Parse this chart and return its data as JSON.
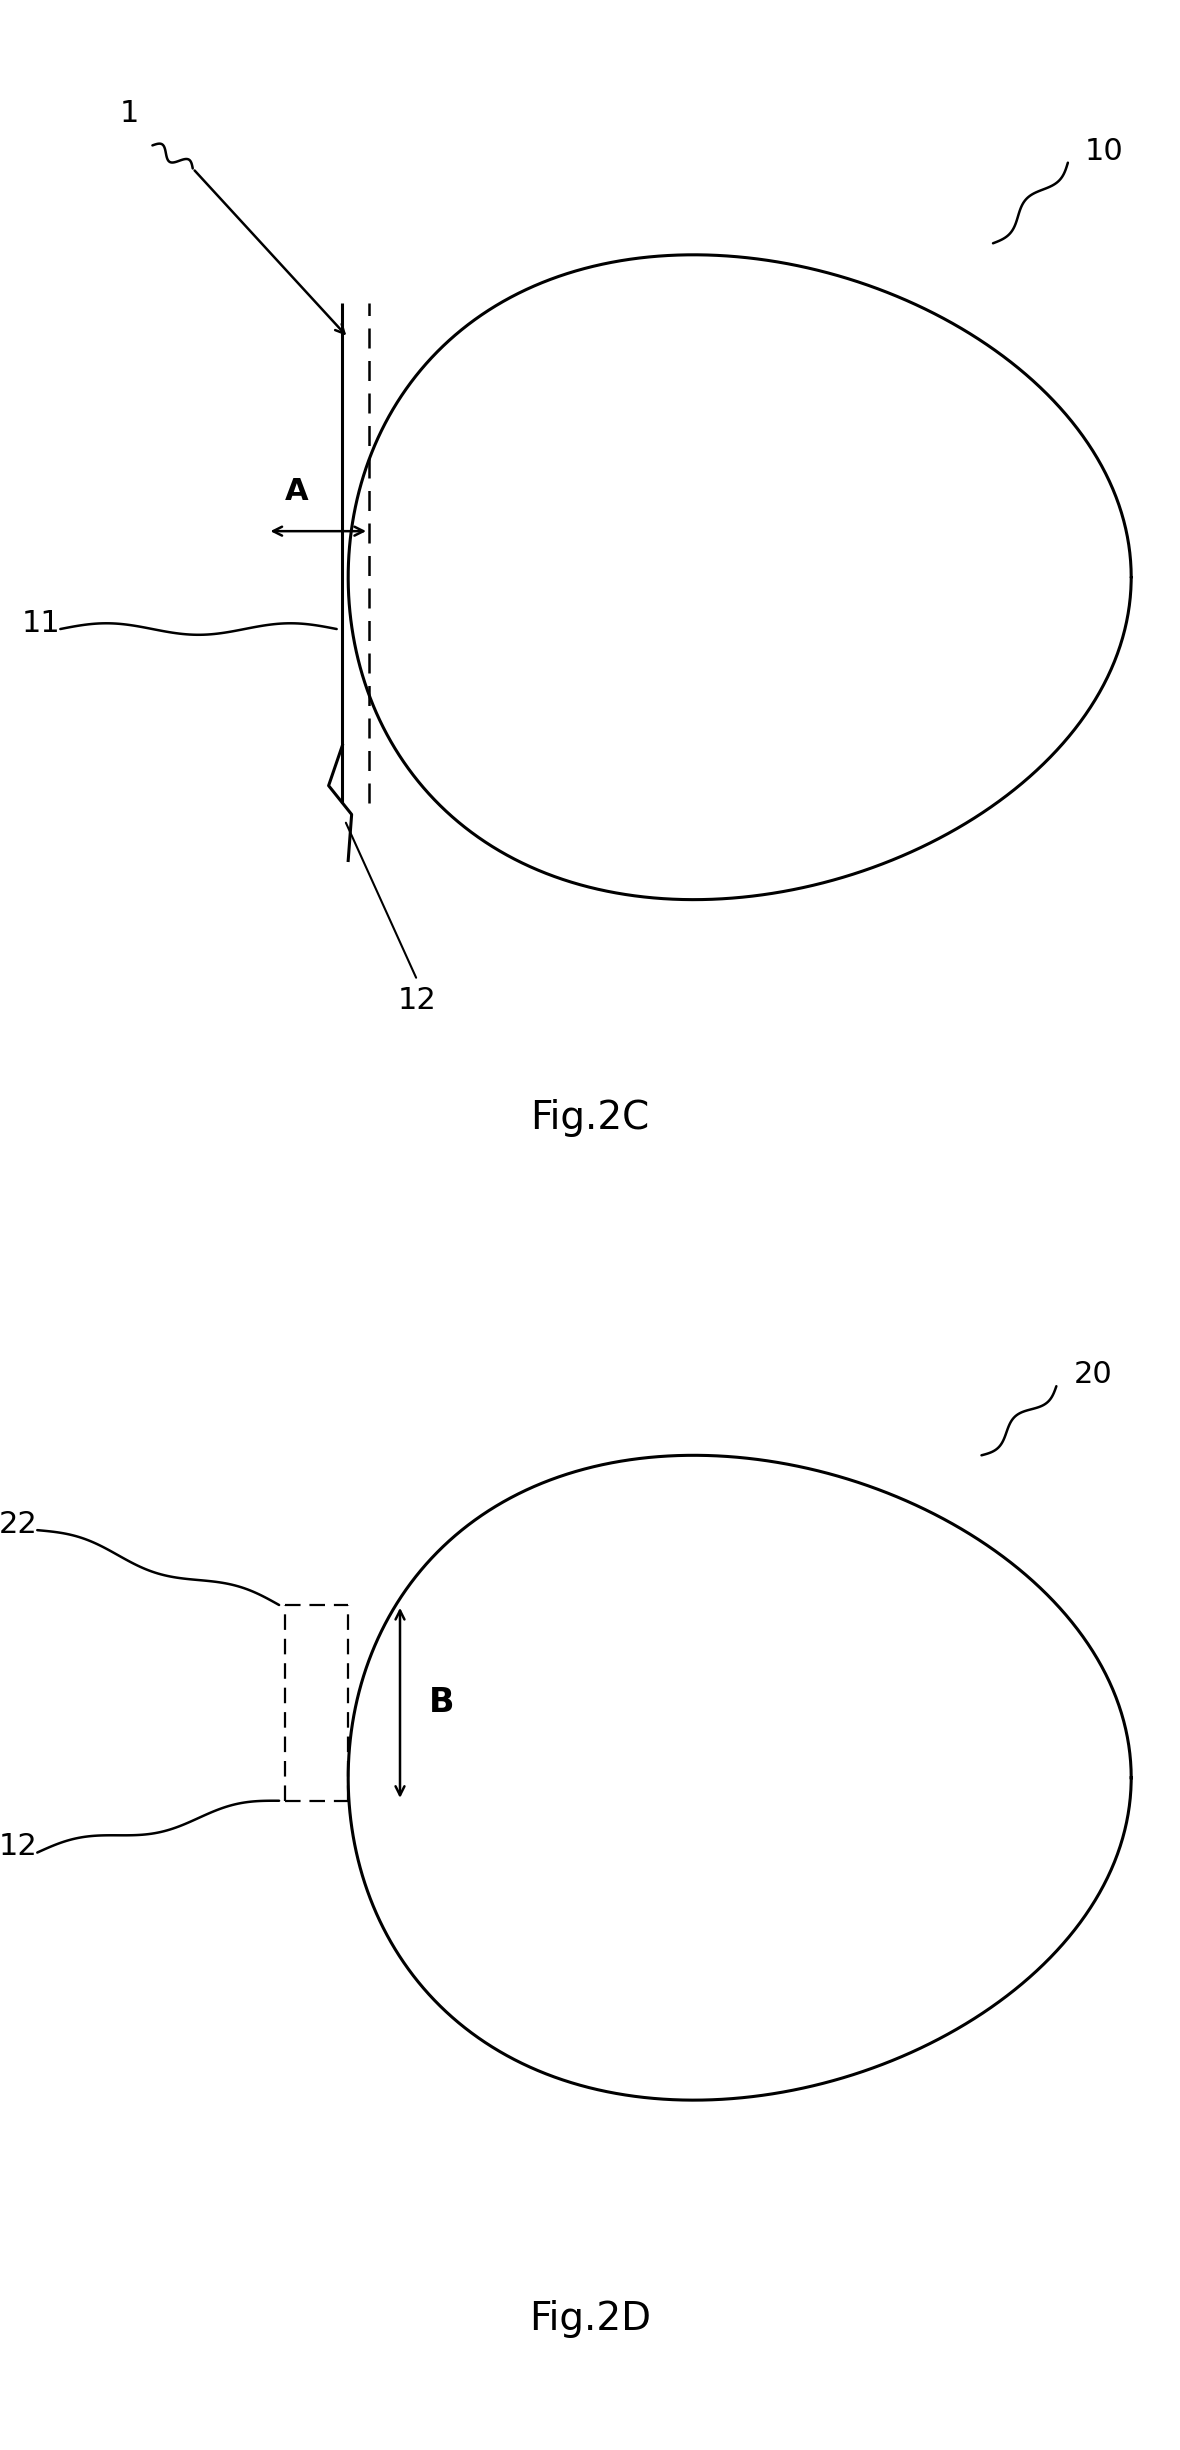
{
  "fig_width": 11.8,
  "fig_height": 24.5,
  "bg_color": "#ffffff",
  "line_color": "#000000",
  "fig2c_caption": "Fig.2C",
  "fig2d_caption": "Fig.2D",
  "label_1": "1",
  "label_10": "10",
  "label_11": "11",
  "label_12": "12",
  "label_22": "22",
  "label_20": "20",
  "label_A": "A",
  "label_B": "B",
  "lw_main": 2.2,
  "lw_annot": 1.8,
  "lw_dash": 1.6,
  "fontsize_label": 20,
  "fontsize_caption": 28
}
